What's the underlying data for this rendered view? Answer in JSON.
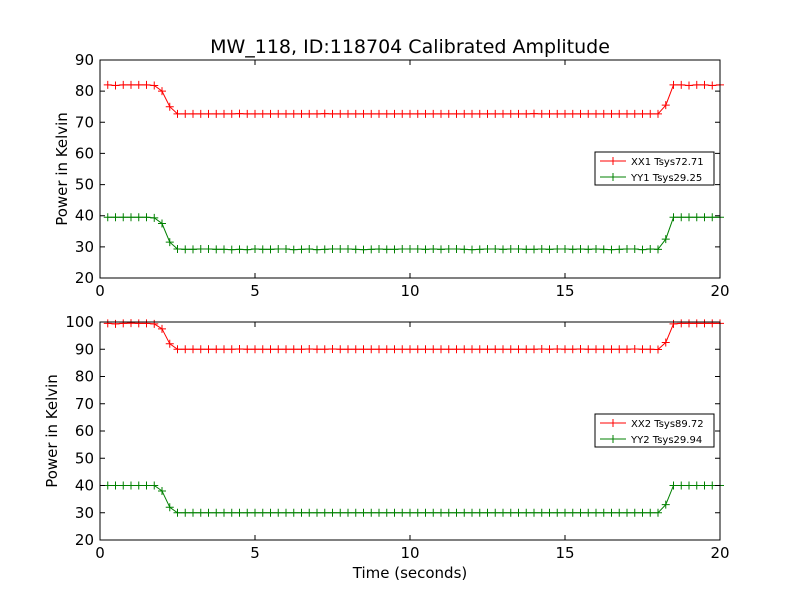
{
  "figure": {
    "title": "MW_118, ID:118704 Calibrated Amplitude",
    "xlabel": "Time (seconds)"
  },
  "colors": {
    "xx": "#ff0000",
    "yy": "#008000",
    "axis": "#000000",
    "background": "#ffffff"
  },
  "chart_data": [
    {
      "type": "line",
      "ylabel": "Power in Kelvin",
      "xlim": [
        0,
        20
      ],
      "ylim": [
        20,
        90
      ],
      "xticks": [
        0,
        5,
        10,
        15,
        20
      ],
      "yticks": [
        20,
        30,
        40,
        50,
        60,
        70,
        80,
        90
      ],
      "grid": false,
      "legend_position": "right",
      "series": [
        {
          "name": "XX1 Tsys72.71",
          "color": "#ff0000",
          "marker": "+",
          "x": [
            0.25,
            0.5,
            0.75,
            1.0,
            1.25,
            1.5,
            1.75,
            2.0,
            2.25,
            2.5,
            2.75,
            3.0,
            3.25,
            3.5,
            3.75,
            4.0,
            4.25,
            4.5,
            4.75,
            5.0,
            5.25,
            5.5,
            5.75,
            6.0,
            6.25,
            6.5,
            6.75,
            7.0,
            7.25,
            7.5,
            7.75,
            8.0,
            8.25,
            8.5,
            8.75,
            9.0,
            9.25,
            9.5,
            9.75,
            10.0,
            10.25,
            10.5,
            10.75,
            11.0,
            11.25,
            11.5,
            11.75,
            12.0,
            12.25,
            12.5,
            12.75,
            13.0,
            13.25,
            13.5,
            13.75,
            14.0,
            14.25,
            14.5,
            14.75,
            15.0,
            15.25,
            15.5,
            15.75,
            16.0,
            16.25,
            16.5,
            16.75,
            17.0,
            17.25,
            17.5,
            17.75,
            18.0,
            18.25,
            18.5,
            18.75,
            19.0,
            19.25,
            19.5,
            19.75,
            20.0
          ],
          "y": [
            82,
            81.8,
            82,
            82,
            82,
            82,
            81.8,
            80,
            75,
            72.7,
            72.7,
            72.7,
            72.7,
            72.7,
            72.7,
            72.7,
            72.7,
            72.8,
            72.7,
            72.7,
            72.7,
            72.7,
            72.7,
            72.7,
            72.7,
            72.7,
            72.7,
            72.7,
            72.8,
            72.7,
            72.7,
            72.7,
            72.7,
            72.7,
            72.7,
            72.7,
            72.7,
            72.7,
            72.7,
            72.7,
            72.7,
            72.7,
            72.7,
            72.7,
            72.7,
            72.7,
            72.7,
            72.7,
            72.7,
            72.7,
            72.7,
            72.7,
            72.7,
            72.7,
            72.7,
            72.8,
            72.7,
            72.7,
            72.7,
            72.7,
            72.7,
            72.7,
            72.7,
            72.7,
            72.7,
            72.7,
            72.7,
            72.7,
            72.7,
            72.7,
            72.7,
            72.7,
            75.5,
            82,
            82,
            81.8,
            82,
            82,
            81.8,
            82
          ]
        },
        {
          "name": "YY1 Tsys29.25",
          "color": "#008000",
          "marker": "+",
          "x": [
            0.25,
            0.5,
            0.75,
            1.0,
            1.25,
            1.5,
            1.75,
            2.0,
            2.25,
            2.5,
            2.75,
            3.0,
            3.25,
            3.5,
            3.75,
            4.0,
            4.25,
            4.5,
            4.75,
            5.0,
            5.25,
            5.5,
            5.75,
            6.0,
            6.25,
            6.5,
            6.75,
            7.0,
            7.25,
            7.5,
            7.75,
            8.0,
            8.25,
            8.5,
            8.75,
            9.0,
            9.25,
            9.5,
            9.75,
            10.0,
            10.25,
            10.5,
            10.75,
            11.0,
            11.25,
            11.5,
            11.75,
            12.0,
            12.25,
            12.5,
            12.75,
            13.0,
            13.25,
            13.5,
            13.75,
            14.0,
            14.25,
            14.5,
            14.75,
            15.0,
            15.25,
            15.5,
            15.75,
            16.0,
            16.25,
            16.5,
            16.75,
            17.0,
            17.25,
            17.5,
            17.75,
            18.0,
            18.25,
            18.5,
            18.75,
            19.0,
            19.25,
            19.5,
            19.75,
            20.0
          ],
          "y": [
            39.5,
            39.5,
            39.5,
            39.5,
            39.5,
            39.5,
            39.3,
            37.5,
            31.5,
            29.3,
            29.2,
            29.2,
            29.3,
            29.3,
            29.2,
            29.2,
            29.1,
            29.2,
            29.1,
            29.3,
            29.2,
            29.2,
            29.3,
            29.3,
            29.1,
            29.2,
            29.3,
            29.1,
            29.2,
            29.3,
            29.3,
            29.3,
            29.2,
            29.1,
            29.2,
            29.3,
            29.2,
            29.2,
            29.3,
            29.3,
            29.3,
            29.2,
            29.3,
            29.2,
            29.3,
            29.3,
            29.2,
            29.1,
            29.2,
            29.3,
            29.3,
            29.2,
            29.3,
            29.3,
            29.2,
            29.2,
            29.3,
            29.2,
            29.3,
            29.3,
            29.2,
            29.3,
            29.2,
            29.3,
            29.2,
            29.1,
            29.2,
            29.3,
            29.3,
            29.1,
            29.3,
            29.2,
            32.5,
            39.5,
            39.5,
            39.5,
            39.5,
            39.5,
            39.5,
            39.5
          ]
        }
      ]
    },
    {
      "type": "line",
      "ylabel": "Power in Kelvin",
      "xlabel": "Time (seconds)",
      "xlim": [
        0,
        20
      ],
      "ylim": [
        20,
        100
      ],
      "xticks": [
        0,
        5,
        10,
        15,
        20
      ],
      "yticks": [
        20,
        30,
        40,
        50,
        60,
        70,
        80,
        90,
        100
      ],
      "grid": false,
      "legend_position": "right",
      "series": [
        {
          "name": "XX2 Tsys89.72",
          "color": "#ff0000",
          "marker": "+",
          "x": [
            0.25,
            0.5,
            0.75,
            1.0,
            1.25,
            1.5,
            1.75,
            2.0,
            2.25,
            2.5,
            2.75,
            3.0,
            3.25,
            3.5,
            3.75,
            4.0,
            4.25,
            4.5,
            4.75,
            5.0,
            5.25,
            5.5,
            5.75,
            6.0,
            6.25,
            6.5,
            6.75,
            7.0,
            7.25,
            7.5,
            7.75,
            8.0,
            8.25,
            8.5,
            8.75,
            9.0,
            9.25,
            9.5,
            9.75,
            10.0,
            10.25,
            10.5,
            10.75,
            11.0,
            11.25,
            11.5,
            11.75,
            12.0,
            12.25,
            12.5,
            12.75,
            13.0,
            13.25,
            13.5,
            13.75,
            14.0,
            14.25,
            14.5,
            14.75,
            15.0,
            15.25,
            15.5,
            15.75,
            16.0,
            16.25,
            16.5,
            16.75,
            17.0,
            17.25,
            17.5,
            17.75,
            18.0,
            18.25,
            18.5,
            18.75,
            19.0,
            19.25,
            19.5,
            19.75,
            20.0
          ],
          "y": [
            99.5,
            99.3,
            99.5,
            99.6,
            99.5,
            99.5,
            99.3,
            97.5,
            92,
            90,
            90,
            90,
            90,
            90,
            90,
            90,
            90,
            90.1,
            90,
            90,
            90,
            90,
            90,
            90,
            90,
            90,
            90.1,
            90,
            90,
            90.1,
            90,
            90,
            90,
            90,
            90,
            90,
            90,
            90,
            90,
            90,
            90,
            90,
            90,
            90,
            90,
            90,
            90,
            90,
            90,
            90,
            90,
            90,
            90,
            90,
            90,
            90,
            90.1,
            90,
            90.1,
            90,
            90,
            90.1,
            90,
            90,
            90,
            90,
            90,
            90,
            90.1,
            90,
            90,
            89.9,
            92.5,
            99.3,
            99.5,
            99.5,
            99.5,
            99.5,
            99.5,
            99.5
          ]
        },
        {
          "name": "YY2 Tsys29.94",
          "color": "#008000",
          "marker": "+",
          "x": [
            0.25,
            0.5,
            0.75,
            1.0,
            1.25,
            1.5,
            1.75,
            2.0,
            2.25,
            2.5,
            2.75,
            3.0,
            3.25,
            3.5,
            3.75,
            4.0,
            4.25,
            4.5,
            4.75,
            5.0,
            5.25,
            5.5,
            5.75,
            6.0,
            6.25,
            6.5,
            6.75,
            7.0,
            7.25,
            7.5,
            7.75,
            8.0,
            8.25,
            8.5,
            8.75,
            9.0,
            9.25,
            9.5,
            9.75,
            10.0,
            10.25,
            10.5,
            10.75,
            11.0,
            11.25,
            11.5,
            11.75,
            12.0,
            12.25,
            12.5,
            12.75,
            13.0,
            13.25,
            13.5,
            13.75,
            14.0,
            14.25,
            14.5,
            14.75,
            15.0,
            15.25,
            15.5,
            15.75,
            16.0,
            16.25,
            16.5,
            16.75,
            17.0,
            17.25,
            17.5,
            17.75,
            18.0,
            18.25,
            18.5,
            18.75,
            19.0,
            19.25,
            19.5,
            19.75,
            20.0
          ],
          "y": [
            40,
            40,
            40,
            40,
            40,
            40,
            40,
            38,
            32,
            30,
            30,
            30,
            30,
            30,
            30,
            30,
            30,
            30,
            30,
            30,
            30,
            30,
            30,
            30,
            30,
            30,
            30,
            30,
            30,
            30,
            30,
            30,
            30,
            30,
            30,
            30,
            30,
            30,
            30,
            30,
            30,
            30,
            30,
            30,
            30,
            30,
            30,
            30,
            30,
            30,
            30,
            30,
            30,
            30,
            30,
            30,
            30,
            30,
            30,
            30,
            30,
            30,
            30,
            30,
            30,
            30,
            30,
            30,
            30,
            30,
            30,
            30,
            33,
            40,
            40,
            40,
            40,
            40,
            40,
            40
          ]
        }
      ]
    }
  ]
}
